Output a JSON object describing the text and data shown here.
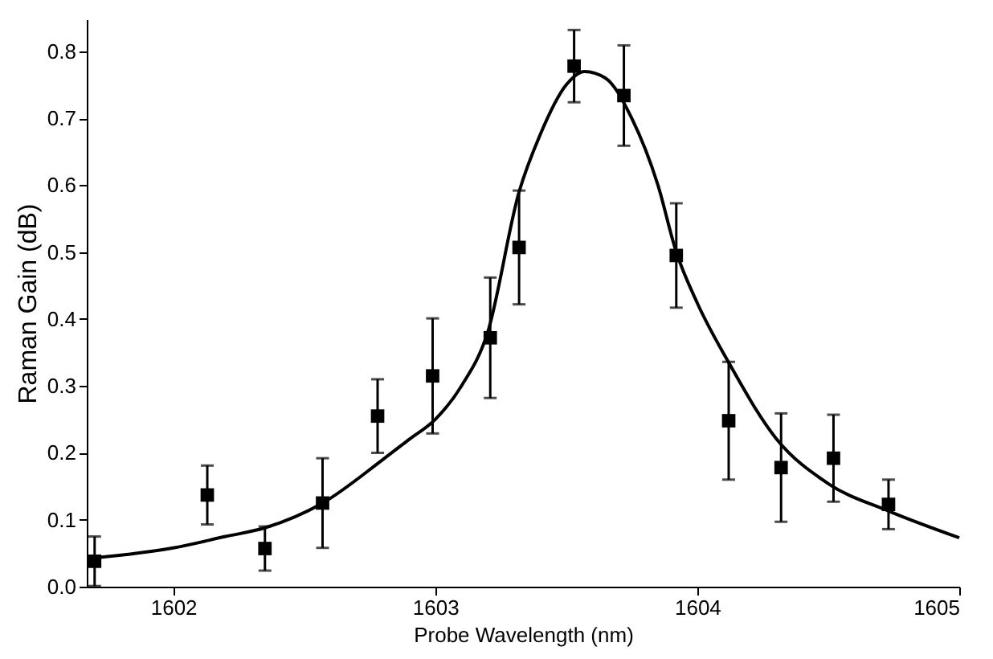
{
  "chart_data": {
    "type": "scatter",
    "xlabel": "Probe Wavelength (nm)",
    "ylabel": "Raman Gain (dB)",
    "xlim": [
      1601.67,
      1605
    ],
    "xticks": [
      1602,
      1603,
      1604,
      1605
    ],
    "ylim": [
      0,
      0.848
    ],
    "yticks": [
      {
        "value": 0,
        "label": "0.0"
      },
      0.1,
      0.2,
      0.3,
      0.4,
      0.5,
      0.6,
      0.7,
      0.8
    ],
    "grid": false,
    "series": [
      {
        "marker": "square",
        "color": "#000000",
        "x": [
          1601.7,
          1602.13,
          1602.35,
          1602.57,
          1602.78,
          1602.99,
          1603.21,
          1603.32,
          1603.53,
          1603.72,
          1603.92,
          1604.12,
          1604.32,
          1604.52,
          1604.73
        ],
        "values": [
          0.038,
          0.137,
          0.057,
          0.125,
          0.255,
          0.315,
          0.372,
          0.507,
          0.778,
          0.734,
          0.495,
          0.248,
          0.178,
          0.192,
          0.123
        ],
        "errors": [
          0.037,
          0.044,
          0.033,
          0.067,
          0.055,
          0.086,
          0.09,
          0.085,
          0.054,
          0.075,
          0.078,
          0.088,
          0.081,
          0.065,
          0.037
        ]
      },
      {
        "type": "line",
        "line_style": "solid",
        "marker": "none",
        "color": "#000000",
        "x": [
          1601.7,
          1602.0,
          1602.2,
          1602.35,
          1602.57,
          1602.8,
          1602.9,
          1603.0,
          1603.1,
          1603.2,
          1603.32,
          1603.4,
          1603.5,
          1603.57,
          1603.65,
          1603.75,
          1603.85,
          1603.92,
          1604.0,
          1604.12,
          1604.3,
          1604.5,
          1604.73,
          1605.0
        ],
        "values": [
          0.043,
          0.058,
          0.075,
          0.088,
          0.125,
          0.19,
          0.22,
          0.25,
          0.3,
          0.38,
          0.59,
          0.675,
          0.75,
          0.77,
          0.76,
          0.7,
          0.6,
          0.5,
          0.424,
          0.335,
          0.222,
          0.154,
          0.113,
          0.073
        ]
      }
    ]
  }
}
